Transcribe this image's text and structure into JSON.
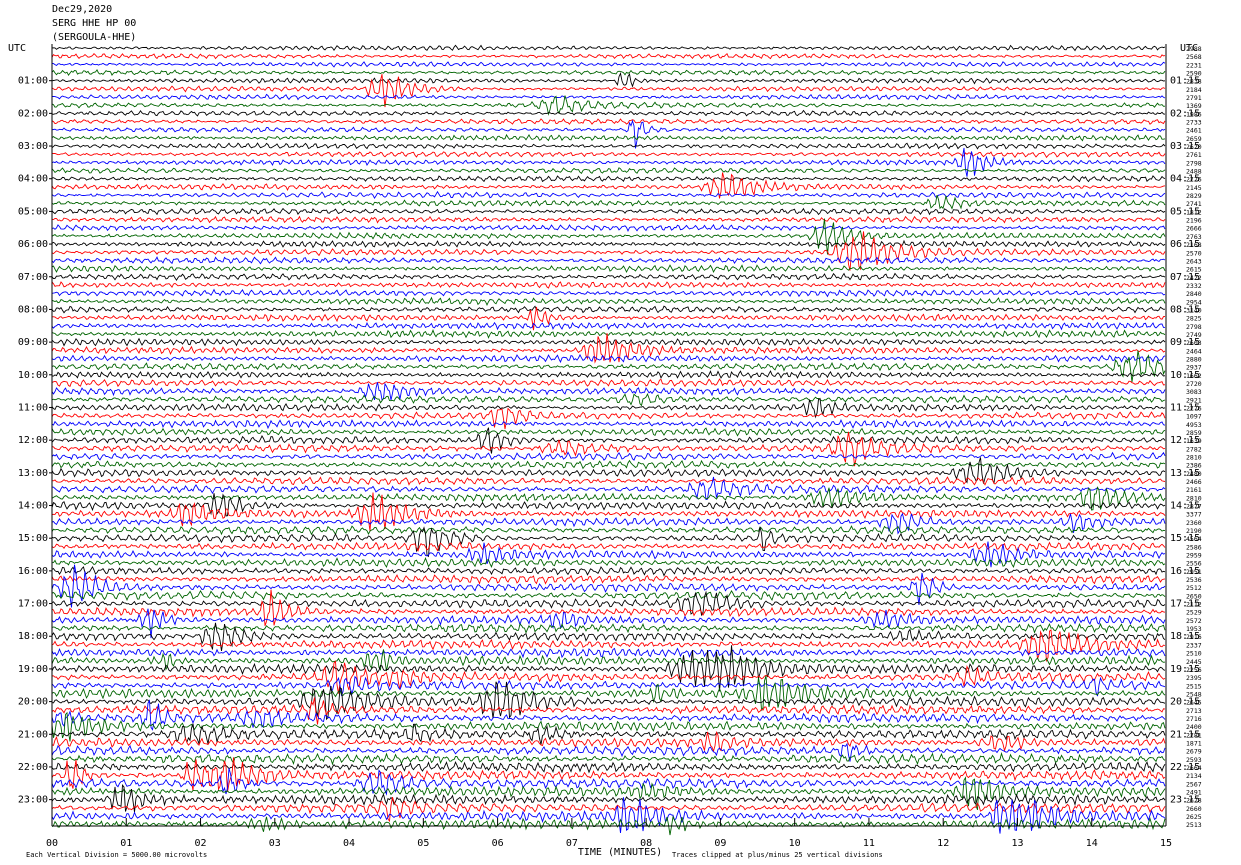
{
  "header": {
    "date": "Dec29,2020",
    "station": "SERG HHE HP 00",
    "name": "(SERGOULA-HHE)"
  },
  "chart_data": {
    "type": "helicorder",
    "left_axis_label": "UTC",
    "right_axis_label": "UTC",
    "left_labels": [
      "01:00",
      "02:00",
      "03:00",
      "04:00",
      "05:00",
      "06:00",
      "07:00",
      "08:00",
      "09:00",
      "10:00",
      "11:00",
      "12:00",
      "13:00",
      "14:00",
      "15:00",
      "16:00",
      "17:00",
      "18:00",
      "19:00",
      "20:00",
      "21:00",
      "22:00",
      "23:00"
    ],
    "right_labels": [
      "01:15",
      "02:15",
      "03:15",
      "04:15",
      "05:15",
      "06:15",
      "07:15",
      "08:15",
      "09:15",
      "10:15",
      "11:15",
      "12:15",
      "13:15",
      "14:15",
      "15:15",
      "16:15",
      "17:15",
      "18:15",
      "19:15",
      "20:15",
      "21:15",
      "22:15",
      "23:15"
    ],
    "trace_values": [
      2988,
      2568,
      2231,
      2590,
      2838,
      2184,
      2791,
      1369,
      1986,
      2733,
      2461,
      2659,
      2620,
      2761,
      2798,
      2488,
      2726,
      2145,
      2829,
      2741,
      1812,
      2196,
      2666,
      2763,
      2168,
      2570,
      2643,
      2615,
      2422,
      2332,
      2840,
      2954,
      3140,
      2825,
      2798,
      2749,
      2603,
      2464,
      2880,
      2937,
      1662,
      2720,
      3083,
      2921,
      2776,
      1097,
      4953,
      2859,
      1639,
      2782,
      2810,
      2386,
      2480,
      2466,
      2161,
      2810,
      2877,
      3377,
      2360,
      2190,
      4564,
      2586,
      2959,
      2556,
      2951,
      2536,
      2512,
      2650,
      2112,
      2529,
      2572,
      1953,
      2916,
      2337,
      2510,
      2445,
      2256,
      2395,
      2515,
      2548,
      2645,
      2713,
      2716,
      2400,
      2781,
      1871,
      2679,
      2593,
      2664,
      2134,
      2567,
      2491,
      2628,
      2660,
      2625,
      2513
    ],
    "trace_colors": [
      "#000000",
      "#ff0000",
      "#0000ff",
      "#006400"
    ],
    "xlim": [
      0,
      15
    ],
    "xticks": [
      {
        "value": 0,
        "label": "00"
      },
      {
        "value": 1,
        "label": "01"
      },
      {
        "value": 2,
        "label": "02"
      },
      {
        "value": 3,
        "label": "03"
      },
      {
        "value": 4,
        "label": "04"
      },
      {
        "value": 5,
        "label": "05"
      },
      {
        "value": 6,
        "label": "06"
      },
      {
        "value": 7,
        "label": "07"
      },
      {
        "value": 8,
        "label": "08"
      },
      {
        "value": 9,
        "label": "09"
      },
      {
        "value": 10,
        "label": "10"
      },
      {
        "value": 11,
        "label": "11"
      },
      {
        "value": 12,
        "label": "12"
      },
      {
        "value": 13,
        "label": "13"
      },
      {
        "value": 14,
        "label": "14"
      },
      {
        "value": 15,
        "label": "15"
      }
    ],
    "xlabel": "TIME (MINUTES)",
    "footnote_left": "Each Vertical Division = 5000.00 microvolts",
    "footnote_right": "Traces clipped at plus/minus 25 vertical divisions"
  }
}
